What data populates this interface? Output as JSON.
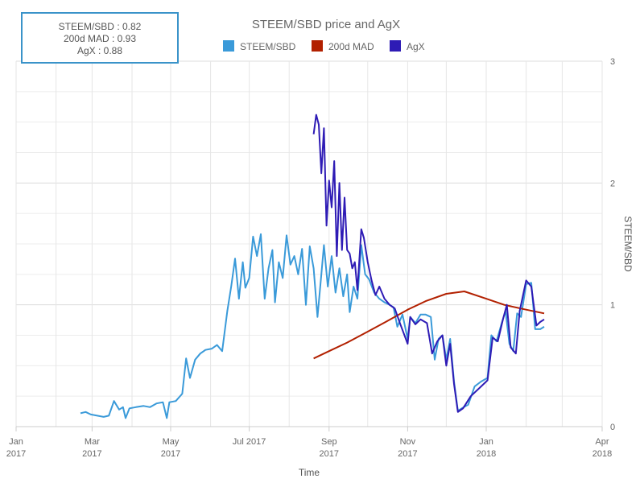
{
  "info_box": {
    "rows": [
      {
        "label": "STEEM/SBD",
        "value": "0.82"
      },
      {
        "label": "200d MAD",
        "value": "0.93"
      },
      {
        "label": "AgX",
        "value": "0.88"
      }
    ]
  },
  "colors": {
    "steem_sbd": "#3a9ad9",
    "mad_200d": "#b22000",
    "agx": "#2e1bb5",
    "grid": "#dcdcdc",
    "axis_text": "#666666"
  },
  "chart_data": {
    "type": "line",
    "title": "STEEM/SBD price and AgX",
    "xlabel": "Time",
    "ylabel": "STEEM/SBD",
    "x_range": [
      "2017-01-01",
      "2018-04-01"
    ],
    "ylim": [
      0,
      3
    ],
    "y_ticks": [
      0,
      1,
      2,
      3
    ],
    "y_axis_side": "right",
    "legend_position": "top-center",
    "grid": true,
    "x_ticks": [
      {
        "date": "2017-01-01",
        "line1": "Jan",
        "line2": "2017"
      },
      {
        "date": "2017-03-01",
        "line1": "Mar",
        "line2": "2017"
      },
      {
        "date": "2017-05-01",
        "line1": "May",
        "line2": "2017"
      },
      {
        "date": "2017-07-01",
        "line1": "Jul 2017",
        "line2": ""
      },
      {
        "date": "2017-09-01",
        "line1": "Sep",
        "line2": "2017"
      },
      {
        "date": "2017-11-01",
        "line1": "Nov",
        "line2": "2017"
      },
      {
        "date": "2018-01-01",
        "line1": "Jan",
        "line2": "2018"
      },
      {
        "date": "2018-04-01",
        "line1": "Apr",
        "line2": "2018"
      }
    ],
    "series": [
      {
        "name": "STEEM/SBD",
        "points": [
          [
            "2017-02-20",
            0.11
          ],
          [
            "2017-02-24",
            0.12
          ],
          [
            "2017-02-28",
            0.1
          ],
          [
            "2017-03-05",
            0.09
          ],
          [
            "2017-03-10",
            0.08
          ],
          [
            "2017-03-14",
            0.09
          ],
          [
            "2017-03-18",
            0.21
          ],
          [
            "2017-03-22",
            0.14
          ],
          [
            "2017-03-25",
            0.16
          ],
          [
            "2017-03-27",
            0.07
          ],
          [
            "2017-03-30",
            0.15
          ],
          [
            "2017-04-04",
            0.16
          ],
          [
            "2017-04-10",
            0.17
          ],
          [
            "2017-04-15",
            0.16
          ],
          [
            "2017-04-20",
            0.19
          ],
          [
            "2017-04-25",
            0.2
          ],
          [
            "2017-04-28",
            0.07
          ],
          [
            "2017-04-30",
            0.2
          ],
          [
            "2017-05-05",
            0.21
          ],
          [
            "2017-05-10",
            0.27
          ],
          [
            "2017-05-13",
            0.56
          ],
          [
            "2017-05-16",
            0.4
          ],
          [
            "2017-05-20",
            0.55
          ],
          [
            "2017-05-24",
            0.6
          ],
          [
            "2017-05-28",
            0.63
          ],
          [
            "2017-06-02",
            0.64
          ],
          [
            "2017-06-06",
            0.67
          ],
          [
            "2017-06-10",
            0.62
          ],
          [
            "2017-06-14",
            0.95
          ],
          [
            "2017-06-17",
            1.15
          ],
          [
            "2017-06-20",
            1.38
          ],
          [
            "2017-06-23",
            1.05
          ],
          [
            "2017-06-26",
            1.35
          ],
          [
            "2017-06-28",
            1.14
          ],
          [
            "2017-07-01",
            1.22
          ],
          [
            "2017-07-04",
            1.56
          ],
          [
            "2017-07-07",
            1.4
          ],
          [
            "2017-07-10",
            1.58
          ],
          [
            "2017-07-13",
            1.05
          ],
          [
            "2017-07-16",
            1.3
          ],
          [
            "2017-07-19",
            1.45
          ],
          [
            "2017-07-21",
            1.02
          ],
          [
            "2017-07-24",
            1.35
          ],
          [
            "2017-07-27",
            1.22
          ],
          [
            "2017-07-30",
            1.57
          ],
          [
            "2017-08-02",
            1.33
          ],
          [
            "2017-08-05",
            1.4
          ],
          [
            "2017-08-08",
            1.25
          ],
          [
            "2017-08-11",
            1.46
          ],
          [
            "2017-08-14",
            1.0
          ],
          [
            "2017-08-17",
            1.48
          ],
          [
            "2017-08-20",
            1.3
          ],
          [
            "2017-08-23",
            0.9
          ],
          [
            "2017-08-26",
            1.25
          ],
          [
            "2017-08-28",
            1.49
          ],
          [
            "2017-08-31",
            1.15
          ],
          [
            "2017-09-03",
            1.4
          ],
          [
            "2017-09-06",
            1.1
          ],
          [
            "2017-09-09",
            1.3
          ],
          [
            "2017-09-12",
            1.07
          ],
          [
            "2017-09-15",
            1.25
          ],
          [
            "2017-09-17",
            0.94
          ],
          [
            "2017-09-20",
            1.15
          ],
          [
            "2017-09-23",
            1.05
          ],
          [
            "2017-09-26",
            1.49
          ],
          [
            "2017-09-29",
            1.25
          ],
          [
            "2017-10-02",
            1.21
          ],
          [
            "2017-10-06",
            1.1
          ],
          [
            "2017-10-10",
            1.05
          ],
          [
            "2017-10-14",
            1.02
          ],
          [
            "2017-10-18",
            1.0
          ],
          [
            "2017-10-21",
            0.98
          ],
          [
            "2017-10-24",
            0.82
          ],
          [
            "2017-10-28",
            0.92
          ],
          [
            "2017-11-01",
            0.72
          ],
          [
            "2017-11-03",
            0.9
          ],
          [
            "2017-11-07",
            0.85
          ],
          [
            "2017-11-11",
            0.92
          ],
          [
            "2017-11-15",
            0.92
          ],
          [
            "2017-11-19",
            0.9
          ],
          [
            "2017-11-22",
            0.55
          ],
          [
            "2017-11-25",
            0.72
          ],
          [
            "2017-11-28",
            0.75
          ],
          [
            "2017-12-01",
            0.55
          ],
          [
            "2017-12-04",
            0.72
          ],
          [
            "2017-12-07",
            0.37
          ],
          [
            "2017-12-10",
            0.13
          ],
          [
            "2017-12-13",
            0.15
          ],
          [
            "2017-12-18",
            0.18
          ],
          [
            "2017-12-23",
            0.33
          ],
          [
            "2017-12-28",
            0.37
          ],
          [
            "2018-01-02",
            0.4
          ],
          [
            "2018-01-05",
            0.75
          ],
          [
            "2018-01-09",
            0.7
          ],
          [
            "2018-01-13",
            0.85
          ],
          [
            "2018-01-16",
            0.95
          ],
          [
            "2018-01-19",
            0.68
          ],
          [
            "2018-01-22",
            0.62
          ],
          [
            "2018-01-25",
            0.93
          ],
          [
            "2018-01-28",
            0.9
          ],
          [
            "2018-02-01",
            1.17
          ],
          [
            "2018-02-05",
            1.18
          ],
          [
            "2018-02-08",
            0.8
          ],
          [
            "2018-02-12",
            0.8
          ],
          [
            "2018-02-15",
            0.82
          ]
        ]
      },
      {
        "name": "200d MAD",
        "points": [
          [
            "2017-08-20",
            0.56
          ],
          [
            "2017-09-01",
            0.62
          ],
          [
            "2017-09-15",
            0.69
          ],
          [
            "2017-10-01",
            0.78
          ],
          [
            "2017-10-15",
            0.86
          ],
          [
            "2017-11-01",
            0.96
          ],
          [
            "2017-11-15",
            1.03
          ],
          [
            "2017-12-01",
            1.09
          ],
          [
            "2017-12-15",
            1.11
          ],
          [
            "2018-01-01",
            1.05
          ],
          [
            "2018-01-15",
            1.0
          ],
          [
            "2018-02-01",
            0.96
          ],
          [
            "2018-02-15",
            0.93
          ]
        ]
      },
      {
        "name": "AgX",
        "points": [
          [
            "2017-08-20",
            2.4
          ],
          [
            "2017-08-22",
            2.56
          ],
          [
            "2017-08-24",
            2.48
          ],
          [
            "2017-08-26",
            2.08
          ],
          [
            "2017-08-28",
            2.45
          ],
          [
            "2017-08-30",
            1.65
          ],
          [
            "2017-09-01",
            2.02
          ],
          [
            "2017-09-03",
            1.8
          ],
          [
            "2017-09-05",
            2.18
          ],
          [
            "2017-09-07",
            1.4
          ],
          [
            "2017-09-09",
            2.0
          ],
          [
            "2017-09-11",
            1.45
          ],
          [
            "2017-09-13",
            1.88
          ],
          [
            "2017-09-15",
            1.45
          ],
          [
            "2017-09-17",
            1.42
          ],
          [
            "2017-09-19",
            1.3
          ],
          [
            "2017-09-21",
            1.35
          ],
          [
            "2017-09-23",
            1.12
          ],
          [
            "2017-09-26",
            1.62
          ],
          [
            "2017-09-28",
            1.55
          ],
          [
            "2017-10-01",
            1.35
          ],
          [
            "2017-10-04",
            1.2
          ],
          [
            "2017-10-07",
            1.08
          ],
          [
            "2017-10-10",
            1.15
          ],
          [
            "2017-10-14",
            1.05
          ],
          [
            "2017-10-18",
            1.0
          ],
          [
            "2017-10-22",
            0.97
          ],
          [
            "2017-10-26",
            0.85
          ],
          [
            "2017-11-01",
            0.68
          ],
          [
            "2017-11-03",
            0.9
          ],
          [
            "2017-11-07",
            0.84
          ],
          [
            "2017-11-11",
            0.88
          ],
          [
            "2017-11-16",
            0.85
          ],
          [
            "2017-11-20",
            0.6
          ],
          [
            "2017-11-24",
            0.7
          ],
          [
            "2017-11-28",
            0.75
          ],
          [
            "2017-12-01",
            0.5
          ],
          [
            "2017-12-04",
            0.68
          ],
          [
            "2017-12-07",
            0.35
          ],
          [
            "2017-12-10",
            0.12
          ],
          [
            "2017-12-14",
            0.15
          ],
          [
            "2017-12-20",
            0.25
          ],
          [
            "2017-12-27",
            0.32
          ],
          [
            "2018-01-02",
            0.38
          ],
          [
            "2018-01-06",
            0.73
          ],
          [
            "2018-01-10",
            0.7
          ],
          [
            "2018-01-14",
            0.88
          ],
          [
            "2018-01-17",
            1.0
          ],
          [
            "2018-01-20",
            0.65
          ],
          [
            "2018-01-24",
            0.6
          ],
          [
            "2018-01-27",
            0.95
          ],
          [
            "2018-02-01",
            1.2
          ],
          [
            "2018-02-05",
            1.15
          ],
          [
            "2018-02-09",
            0.83
          ],
          [
            "2018-02-12",
            0.86
          ],
          [
            "2018-02-15",
            0.88
          ]
        ]
      }
    ]
  }
}
